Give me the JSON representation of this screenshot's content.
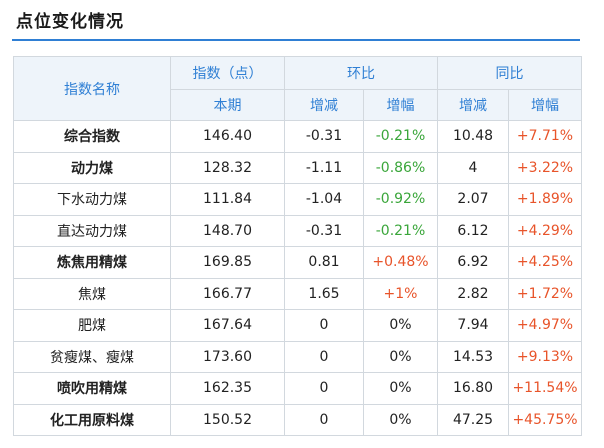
{
  "title": "点位变化情况",
  "header": {
    "name_col": "指数名称",
    "index_col": "指数（点）",
    "current": "本期",
    "mom_group": "环比",
    "yoy_group": "同比",
    "change": "增减",
    "pct": "增幅"
  },
  "rows": [
    {
      "name": "综合指数",
      "bold": true,
      "value": "146.40",
      "mom_change": "-0.31",
      "mom_pct": "-0.21%",
      "yoy_change": "10.48",
      "yoy_pct": "+7.71%"
    },
    {
      "name": "动力煤",
      "bold": true,
      "value": "128.32",
      "mom_change": "-1.11",
      "mom_pct": "-0.86%",
      "yoy_change": "4",
      "yoy_pct": "+3.22%"
    },
    {
      "name": "下水动力煤",
      "bold": false,
      "value": "111.84",
      "mom_change": "-1.04",
      "mom_pct": "-0.92%",
      "yoy_change": "2.07",
      "yoy_pct": "+1.89%"
    },
    {
      "name": "直达动力煤",
      "bold": false,
      "value": "148.70",
      "mom_change": "-0.31",
      "mom_pct": "-0.21%",
      "yoy_change": "6.12",
      "yoy_pct": "+4.29%"
    },
    {
      "name": "炼焦用精煤",
      "bold": true,
      "value": "169.85",
      "mom_change": "0.81",
      "mom_pct": "+0.48%",
      "yoy_change": "6.92",
      "yoy_pct": "+4.25%"
    },
    {
      "name": "焦煤",
      "bold": false,
      "value": "166.77",
      "mom_change": "1.65",
      "mom_pct": "+1%",
      "yoy_change": "2.82",
      "yoy_pct": "+1.72%"
    },
    {
      "name": "肥煤",
      "bold": false,
      "value": "167.64",
      "mom_change": "0",
      "mom_pct": "0%",
      "yoy_change": "7.94",
      "yoy_pct": "+4.97%"
    },
    {
      "name": "贫瘦煤、瘦煤",
      "bold": false,
      "value": "173.60",
      "mom_change": "0",
      "mom_pct": "0%",
      "yoy_change": "14.53",
      "yoy_pct": "+9.13%"
    },
    {
      "name": "喷吹用精煤",
      "bold": true,
      "value": "162.35",
      "mom_change": "0",
      "mom_pct": "0%",
      "yoy_change": "16.80",
      "yoy_pct": "+11.54%"
    },
    {
      "name": "化工用原料煤",
      "bold": true,
      "value": "150.52",
      "mom_change": "0",
      "mom_pct": "0%",
      "yoy_change": "47.25",
      "yoy_pct": "+45.75%"
    }
  ],
  "colors": {
    "accent": "#2f7fd4",
    "header_bg": "#eef4fa",
    "negative": "#3aa63a",
    "positive": "#e8542a",
    "border": "#d2d8de"
  }
}
